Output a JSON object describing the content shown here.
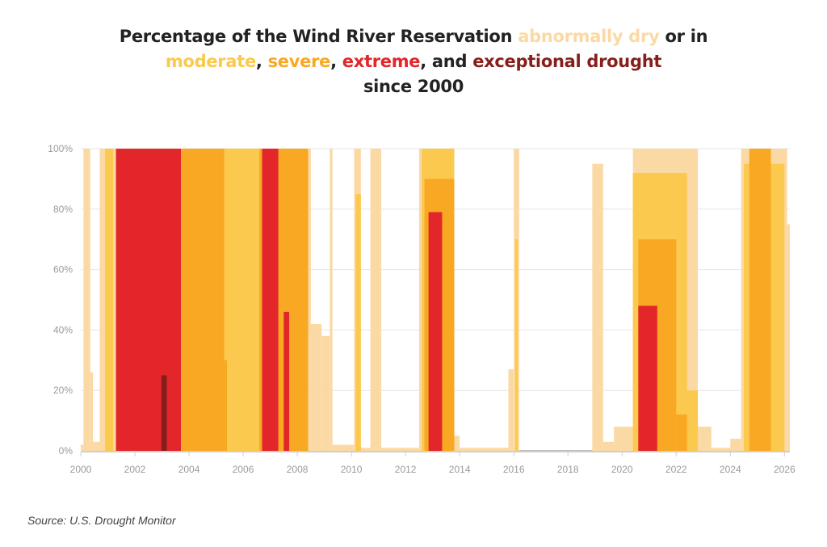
{
  "title": {
    "part1": "Percentage of the Wind River Reservation ",
    "abnormally": "abnormally dry",
    "part2": " or in",
    "moderate": "moderate",
    "comma1": ", ",
    "severe": "severe",
    "comma2": ", ",
    "extreme": "extreme",
    "part3": ", and ",
    "exceptional": "exceptional drought",
    "part4": "since 2000"
  },
  "source": "Source: U.S. Drought Monitor",
  "chart_data": {
    "type": "area",
    "xlabel": "",
    "ylabel": "",
    "xlim": [
      2000,
      2026.2
    ],
    "ylim": [
      0,
      100
    ],
    "x_ticks": [
      "2000",
      "2002",
      "2004",
      "2006",
      "2008",
      "2010",
      "2012",
      "2014",
      "2016",
      "2018",
      "2020",
      "2022",
      "2024",
      "2026"
    ],
    "y_ticks": [
      "0%",
      "20%",
      "40%",
      "60%",
      "80%",
      "100%"
    ],
    "colors": {
      "abnormally_dry": "#fbd9a4",
      "moderate": "#fbc94e",
      "severe": "#f8a822",
      "extreme": "#e3262a",
      "exceptional": "#861f1c"
    },
    "series": [
      {
        "name": "abnormally dry",
        "color": "#fbd9a4",
        "segments": [
          {
            "from": 2000.0,
            "to": 2000.1,
            "value": 2
          },
          {
            "from": 2000.1,
            "to": 2000.35,
            "value": 100
          },
          {
            "from": 2000.35,
            "to": 2000.45,
            "value": 26
          },
          {
            "from": 2000.45,
            "to": 2000.7,
            "value": 3
          },
          {
            "from": 2000.7,
            "to": 2001.3,
            "value": 100
          },
          {
            "from": 2001.3,
            "to": 2008.5,
            "value": 100
          },
          {
            "from": 2008.5,
            "to": 2008.9,
            "value": 42
          },
          {
            "from": 2008.9,
            "to": 2009.2,
            "value": 38
          },
          {
            "from": 2009.2,
            "to": 2009.3,
            "value": 100
          },
          {
            "from": 2009.3,
            "to": 2010.1,
            "value": 2
          },
          {
            "from": 2010.1,
            "to": 2010.35,
            "value": 100
          },
          {
            "from": 2010.35,
            "to": 2010.7,
            "value": 1
          },
          {
            "from": 2010.7,
            "to": 2011.1,
            "value": 100
          },
          {
            "from": 2011.1,
            "to": 2012.5,
            "value": 1
          },
          {
            "from": 2012.5,
            "to": 2013.8,
            "value": 100
          },
          {
            "from": 2013.8,
            "to": 2014.0,
            "value": 5
          },
          {
            "from": 2014.0,
            "to": 2015.8,
            "value": 1
          },
          {
            "from": 2015.8,
            "to": 2016.0,
            "value": 27
          },
          {
            "from": 2016.0,
            "to": 2016.2,
            "value": 100
          },
          {
            "from": 2016.2,
            "to": 2018.9,
            "value": 0
          },
          {
            "from": 2018.9,
            "to": 2019.3,
            "value": 95
          },
          {
            "from": 2019.3,
            "to": 2019.7,
            "value": 3
          },
          {
            "from": 2019.7,
            "to": 2020.4,
            "value": 8
          },
          {
            "from": 2020.4,
            "to": 2022.8,
            "value": 100
          },
          {
            "from": 2022.8,
            "to": 2023.3,
            "value": 8
          },
          {
            "from": 2023.3,
            "to": 2024.0,
            "value": 1
          },
          {
            "from": 2024.0,
            "to": 2024.4,
            "value": 4
          },
          {
            "from": 2024.4,
            "to": 2026.1,
            "value": 100
          },
          {
            "from": 2026.1,
            "to": 2026.2,
            "value": 75
          }
        ]
      },
      {
        "name": "moderate",
        "color": "#fbc94e",
        "segments": [
          {
            "from": 2000.9,
            "to": 2001.2,
            "value": 100
          },
          {
            "from": 2001.3,
            "to": 2008.4,
            "value": 100
          },
          {
            "from": 2010.15,
            "to": 2010.35,
            "value": 85
          },
          {
            "from": 2012.6,
            "to": 2013.8,
            "value": 100
          },
          {
            "from": 2016.05,
            "to": 2016.15,
            "value": 70
          },
          {
            "from": 2020.4,
            "to": 2022.4,
            "value": 92
          },
          {
            "from": 2022.4,
            "to": 2022.8,
            "value": 20
          },
          {
            "from": 2024.5,
            "to": 2026.0,
            "value": 95
          }
        ]
      },
      {
        "name": "severe",
        "color": "#f8a822",
        "segments": [
          {
            "from": 2001.3,
            "to": 2005.3,
            "value": 100
          },
          {
            "from": 2005.3,
            "to": 2005.4,
            "value": 30
          },
          {
            "from": 2006.6,
            "to": 2008.4,
            "value": 100
          },
          {
            "from": 2012.7,
            "to": 2013.8,
            "value": 90
          },
          {
            "from": 2020.6,
            "to": 2022.0,
            "value": 70
          },
          {
            "from": 2022.0,
            "to": 2022.4,
            "value": 12
          },
          {
            "from": 2024.7,
            "to": 2025.5,
            "value": 100
          }
        ]
      },
      {
        "name": "extreme",
        "color": "#e3262a",
        "segments": [
          {
            "from": 2001.3,
            "to": 2003.7,
            "value": 100
          },
          {
            "from": 2006.7,
            "to": 2007.3,
            "value": 100
          },
          {
            "from": 2007.5,
            "to": 2007.7,
            "value": 46
          },
          {
            "from": 2012.85,
            "to": 2013.35,
            "value": 79
          },
          {
            "from": 2020.6,
            "to": 2021.3,
            "value": 48
          }
        ]
      },
      {
        "name": "exceptional",
        "color": "#861f1c",
        "segments": [
          {
            "from": 2002.98,
            "to": 2003.18,
            "value": 25
          }
        ]
      }
    ]
  }
}
